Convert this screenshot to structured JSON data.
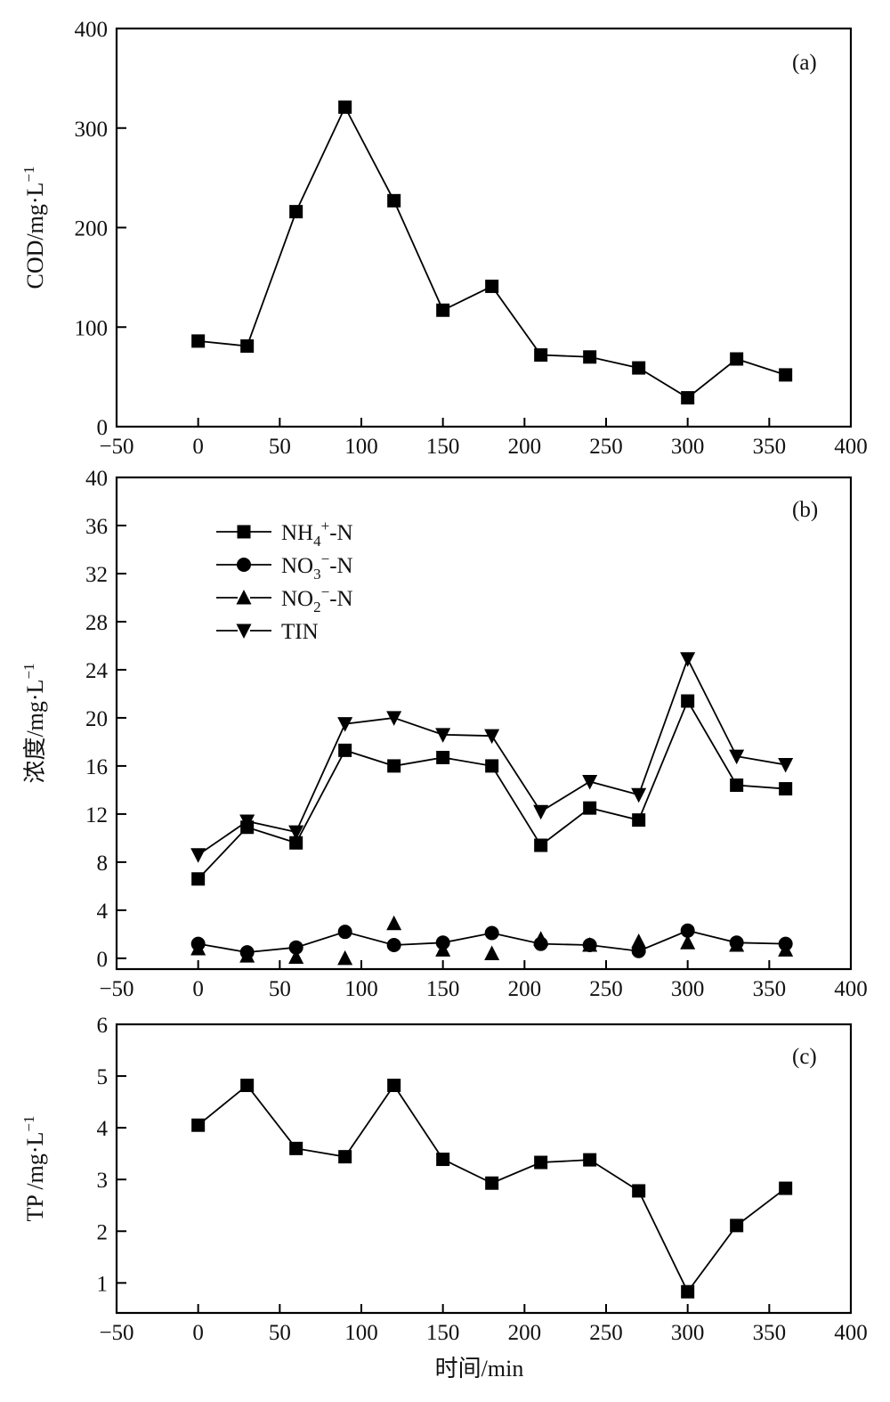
{
  "chart_data": [
    {
      "id": "a",
      "type": "line",
      "panel_label": "(a)",
      "title": "",
      "xlabel": "",
      "ylabel": "COD/mg·L⁻¹",
      "ylabel_parts": {
        "main": "COD/mg·L",
        "sup": "−1"
      },
      "xlim": [
        -50,
        400
      ],
      "ylim": [
        0,
        400
      ],
      "xticks": [
        -50,
        0,
        50,
        100,
        150,
        200,
        250,
        300,
        350,
        400
      ],
      "xtick_labels": [
        "−50",
        "0",
        "50",
        "100",
        "150",
        "200",
        "250",
        "300",
        "350",
        "400"
      ],
      "yticks": [
        0,
        100,
        200,
        300,
        400
      ],
      "ytick_labels": [
        "0",
        "100",
        "200",
        "300",
        "400"
      ],
      "grid": false,
      "x": [
        0,
        30,
        60,
        90,
        120,
        150,
        180,
        210,
        240,
        270,
        300,
        330,
        360
      ],
      "series": [
        {
          "name": "COD",
          "marker": "square",
          "connected": true,
          "values": [
            86,
            81,
            216,
            321,
            227,
            117,
            141,
            72,
            70,
            59,
            29,
            68,
            52
          ]
        }
      ]
    },
    {
      "id": "b",
      "type": "line",
      "panel_label": "(b)",
      "title": "",
      "xlabel": "",
      "ylabel": "浓度/mg·L⁻¹",
      "ylabel_parts": {
        "main": "浓度/mg·L",
        "sup": "−1"
      },
      "xlim": [
        -50,
        400
      ],
      "ylim": [
        -0.9,
        40
      ],
      "xticks": [
        -50,
        0,
        50,
        100,
        150,
        200,
        250,
        300,
        350,
        400
      ],
      "xtick_labels": [
        "−50",
        "0",
        "50",
        "100",
        "150",
        "200",
        "250",
        "300",
        "350",
        "400"
      ],
      "yticks": [
        0,
        4,
        8,
        12,
        16,
        20,
        24,
        28,
        32,
        36,
        40
      ],
      "ytick_labels": [
        "0",
        "4",
        "8",
        "12",
        "16",
        "20",
        "24",
        "28",
        "32",
        "36",
        "40"
      ],
      "grid": false,
      "legend_position": "top-left",
      "x": [
        0,
        30,
        60,
        90,
        120,
        150,
        180,
        210,
        240,
        270,
        300,
        330,
        360
      ],
      "series": [
        {
          "name": "NH4+-N",
          "label_parts": {
            "base": "NH",
            "sub": "4",
            "sup": "+",
            "tail": "-N"
          },
          "marker": "square",
          "connected": true,
          "values": [
            6.6,
            10.9,
            9.6,
            17.3,
            16.0,
            16.7,
            16.0,
            9.4,
            12.5,
            11.5,
            21.4,
            14.4,
            14.1
          ]
        },
        {
          "name": "NO3−-N",
          "label_parts": {
            "base": "NO",
            "sub": "3",
            "sup": "−",
            "tail": "-N"
          },
          "marker": "circle",
          "connected": true,
          "values": [
            1.2,
            0.5,
            0.9,
            2.2,
            1.1,
            1.3,
            2.1,
            1.2,
            1.1,
            0.6,
            2.3,
            1.3,
            1.2
          ]
        },
        {
          "name": "NO2−-N",
          "label_parts": {
            "base": "NO",
            "sub": "2",
            "sup": "−",
            "tail": "-N"
          },
          "marker": "triangle-up",
          "connected": false,
          "values": [
            0.8,
            0.2,
            0.1,
            0.0,
            2.9,
            0.7,
            0.4,
            1.6,
            1.1,
            1.4,
            1.3,
            1.1,
            0.7
          ]
        },
        {
          "name": "TIN",
          "label_parts": {
            "base": "TIN",
            "sub": "",
            "sup": "",
            "tail": ""
          },
          "marker": "triangle-down",
          "connected": true,
          "values": [
            8.6,
            11.4,
            10.5,
            19.5,
            20.0,
            18.6,
            18.5,
            12.2,
            14.7,
            13.6,
            24.9,
            16.8,
            16.1
          ]
        }
      ]
    },
    {
      "id": "c",
      "type": "line",
      "panel_label": "(c)",
      "title": "",
      "xlabel": "时间/min",
      "ylabel": "TP /mg·L⁻¹",
      "ylabel_parts": {
        "main": "TP /mg·L",
        "sup": "−1"
      },
      "xlim": [
        -50,
        400
      ],
      "ylim": [
        0.42,
        6
      ],
      "xticks": [
        -50,
        0,
        50,
        100,
        150,
        200,
        250,
        300,
        350,
        400
      ],
      "xtick_labels": [
        "−50",
        "0",
        "50",
        "100",
        "150",
        "200",
        "250",
        "300",
        "350",
        "400"
      ],
      "yticks": [
        1,
        2,
        3,
        4,
        5,
        6
      ],
      "ytick_labels": [
        "1",
        "2",
        "3",
        "4",
        "5",
        "6"
      ],
      "grid": false,
      "x": [
        0,
        30,
        60,
        90,
        120,
        150,
        180,
        210,
        240,
        270,
        300,
        330,
        360
      ],
      "series": [
        {
          "name": "TP",
          "marker": "square",
          "connected": true,
          "values": [
            4.05,
            4.82,
            3.6,
            3.44,
            4.82,
            3.39,
            2.93,
            3.33,
            3.38,
            2.78,
            0.83,
            2.11,
            2.83
          ]
        }
      ]
    }
  ]
}
